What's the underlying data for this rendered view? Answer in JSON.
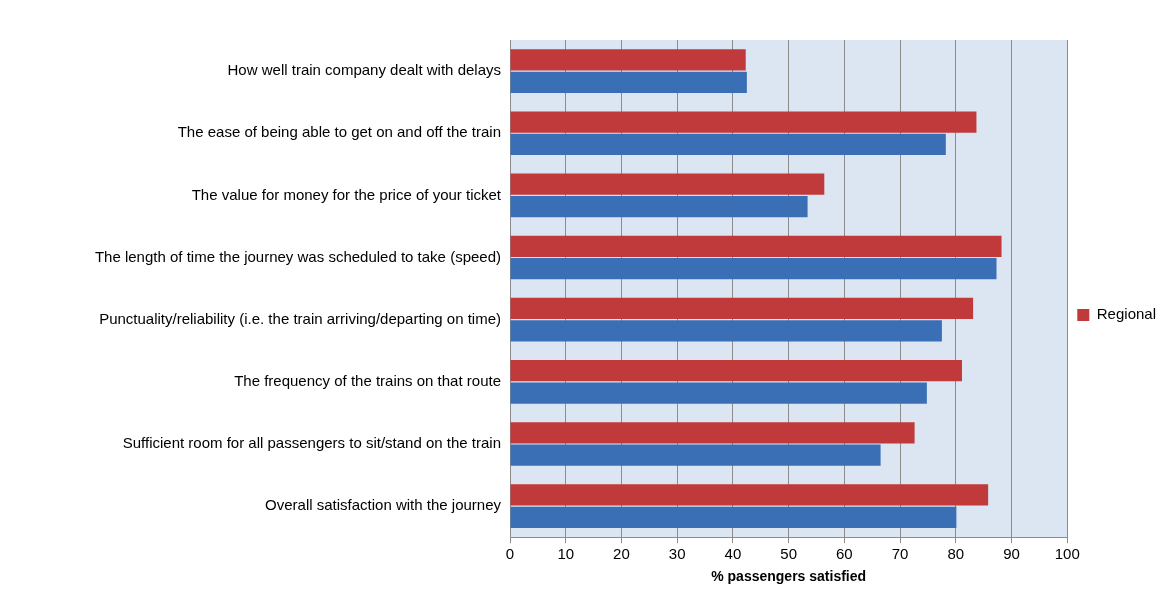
{
  "chart_data": {
    "type": "bar",
    "orientation": "horizontal",
    "xlabel": "% passengers satisfied",
    "categories": [
      "How well train company dealt with delays",
      "The ease of being able to get on and off the train",
      "The value for money for the price of your ticket",
      "The length of time the journey was scheduled to take (speed)",
      "Punctuality/reliability (i.e. the train arriving/departing on time)",
      "The frequency of the trains on that route",
      "Sufficient room for all passengers to sit/stand on the train",
      "Overall satisfaction with the journey"
    ],
    "series": [
      {
        "name": "Regional",
        "color": "#c0393b",
        "values": [
          42.3,
          83.7,
          56.4,
          88.2,
          83.1,
          81.1,
          72.6,
          85.8
        ]
      },
      {
        "color": "#3a6fb5",
        "values": [
          42.5,
          78.2,
          53.4,
          87.3,
          77.5,
          74.8,
          66.5,
          80.1
        ]
      }
    ],
    "xlim": [
      0,
      100
    ],
    "xticks": [
      0,
      10,
      20,
      30,
      40,
      50,
      60,
      70,
      80,
      90,
      100
    ],
    "grid": "x",
    "legend": "right"
  }
}
